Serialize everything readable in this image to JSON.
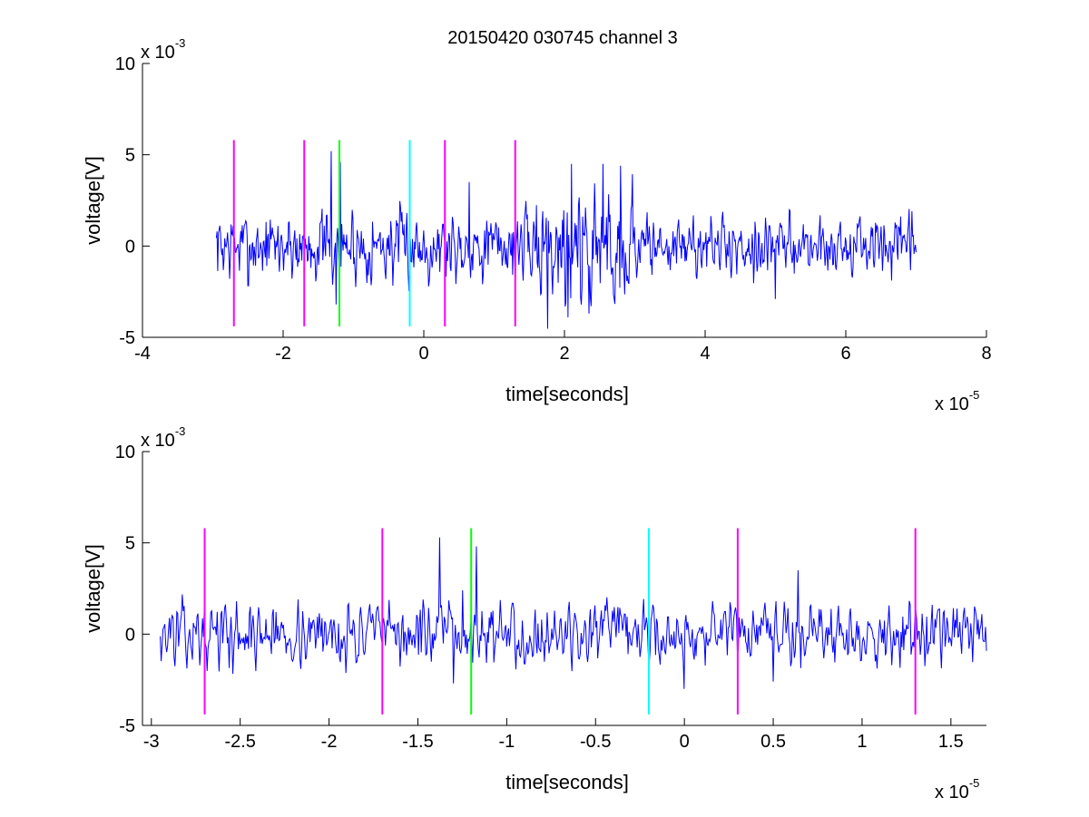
{
  "figure": {
    "title": "20150420 030745 channel 3"
  },
  "colors": {
    "signal": "#0000ff",
    "magenta": "#ff00ff",
    "green": "#00ff00",
    "cyan": "#00ffff",
    "axis": "#000000"
  },
  "chart_data": [
    {
      "type": "line",
      "xlabel": "time[seconds]",
      "ylabel": "voltage[V]",
      "x_exponent_prefix": "x 10",
      "x_exponent_power": "-5",
      "y_exponent_prefix": "x 10",
      "y_exponent_power": "-3",
      "xlim": [
        -4,
        8
      ],
      "ylim": [
        -5,
        10
      ],
      "xticks": [
        -4,
        -2,
        0,
        2,
        4,
        6,
        8
      ],
      "xtick_labels": [
        "-4",
        "-2",
        "0",
        "2",
        "4",
        "6",
        "8"
      ],
      "yticks": [
        -5,
        0,
        5,
        10
      ],
      "ytick_labels": [
        "-5",
        "0",
        "5",
        "10"
      ],
      "grid": false,
      "signal": {
        "x_start": -2.95,
        "x_end": 7.0,
        "samples": 1000,
        "seed": 7,
        "segments": [
          {
            "x_from": -2.95,
            "x_to": 1.6,
            "amp": 1.7
          },
          {
            "x_from": 1.6,
            "x_to": 3.0,
            "amp": 3.2
          },
          {
            "x_from": 3.0,
            "x_to": 7.0,
            "amp": 1.4
          }
        ],
        "peaks": [
          {
            "x": -1.32,
            "y": 5.2
          },
          {
            "x": -1.19,
            "y": 4.6
          },
          {
            "x": -1.25,
            "y": -3.2
          },
          {
            "x": 0.65,
            "y": 3.5
          },
          {
            "x": 2.1,
            "y": 4.5
          },
          {
            "x": 2.35,
            "y": 4.8
          },
          {
            "x": 2.55,
            "y": 4.5
          },
          {
            "x": 2.8,
            "y": 4.4
          },
          {
            "x": 2.05,
            "y": -3.9
          },
          {
            "x": 2.35,
            "y": -3.7
          },
          {
            "x": 5.0,
            "y": -2.9
          }
        ]
      },
      "markers": [
        {
          "x": -2.7,
          "color": "magenta",
          "y_from": -4.4,
          "y_to": 5.8
        },
        {
          "x": -1.7,
          "color": "magenta",
          "y_from": -4.4,
          "y_to": 5.8
        },
        {
          "x": -1.2,
          "color": "green",
          "y_from": -4.4,
          "y_to": 5.8
        },
        {
          "x": -0.2,
          "color": "cyan",
          "y_from": -4.4,
          "y_to": 5.8
        },
        {
          "x": 0.3,
          "color": "magenta",
          "y_from": -4.4,
          "y_to": 5.8
        },
        {
          "x": 1.3,
          "color": "magenta",
          "y_from": -4.4,
          "y_to": 5.8
        }
      ]
    },
    {
      "type": "line",
      "xlabel": "time[seconds]",
      "ylabel": "voltage[V]",
      "x_exponent_prefix": "x 10",
      "x_exponent_power": "-5",
      "y_exponent_prefix": "x 10",
      "y_exponent_power": "-3",
      "xlim": [
        -3.05,
        1.7
      ],
      "ylim": [
        -5,
        10
      ],
      "xticks": [
        -3,
        -2.5,
        -2,
        -1.5,
        -1,
        -0.5,
        0,
        0.5,
        1,
        1.5
      ],
      "xtick_labels": [
        "-3",
        "-2.5",
        "-2",
        "-1.5",
        "-1",
        "-0.5",
        "0",
        "0.5",
        "1",
        "1.5"
      ],
      "yticks": [
        -5,
        0,
        5,
        10
      ],
      "ytick_labels": [
        "-5",
        "0",
        "5",
        "10"
      ],
      "grid": false,
      "signal": {
        "x_start": -2.95,
        "x_end": 1.7,
        "samples": 900,
        "seed": 13,
        "segments": [
          {
            "x_from": -2.95,
            "x_to": 1.7,
            "amp": 1.5
          }
        ],
        "peaks": [
          {
            "x": -1.38,
            "y": 5.3
          },
          {
            "x": -1.17,
            "y": 4.8
          },
          {
            "x": -1.25,
            "y": 2.4
          },
          {
            "x": 0.64,
            "y": 3.5
          },
          {
            "x": 0.0,
            "y": -3.0
          },
          {
            "x": 0.5,
            "y": -2.6
          },
          {
            "x": -1.3,
            "y": -2.7
          }
        ]
      },
      "markers": [
        {
          "x": -2.7,
          "color": "magenta",
          "y_from": -4.4,
          "y_to": 5.8
        },
        {
          "x": -1.7,
          "color": "magenta",
          "y_from": -4.4,
          "y_to": 5.8
        },
        {
          "x": -1.2,
          "color": "green",
          "y_from": -4.4,
          "y_to": 5.8
        },
        {
          "x": -0.2,
          "color": "cyan",
          "y_from": -4.4,
          "y_to": 5.8
        },
        {
          "x": 0.3,
          "color": "magenta",
          "y_from": -4.4,
          "y_to": 5.8
        },
        {
          "x": 1.3,
          "color": "magenta",
          "y_from": -4.4,
          "y_to": 5.8
        }
      ]
    }
  ]
}
